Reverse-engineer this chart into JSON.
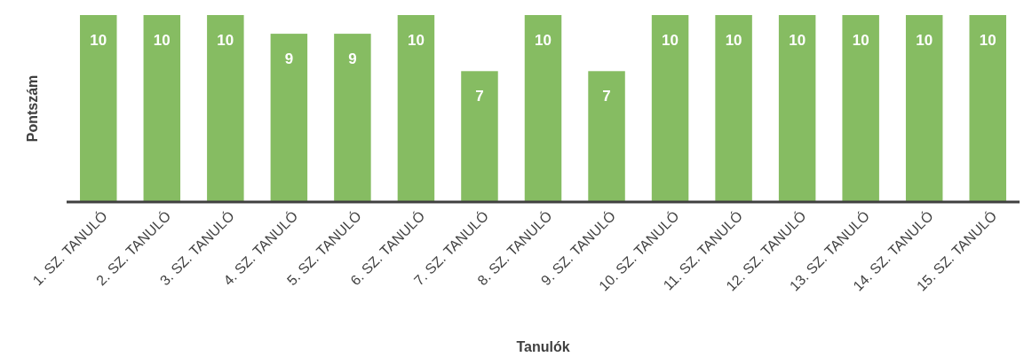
{
  "chart_data": {
    "type": "bar",
    "xlabel": "Tanulók",
    "ylabel": "Pontszám",
    "categories": [
      "1. SZ. TANULÓ",
      "2. SZ. TANULÓ",
      "3. SZ. TANULÓ",
      "4. SZ. TANULÓ",
      "5. SZ. TANULÓ",
      "6. SZ. TANULÓ",
      "7. SZ. TANULÓ",
      "8. SZ. TANULÓ",
      "9. SZ. TANULÓ",
      "10. SZ. TANULÓ",
      "11. SZ. TANULÓ",
      "12. SZ. TANULÓ",
      "13. SZ. TANULÓ",
      "14. SZ. TANULÓ",
      "15. SZ. TANULÓ"
    ],
    "values": [
      10,
      10,
      10,
      9,
      9,
      10,
      7,
      10,
      7,
      10,
      10,
      10,
      10,
      10,
      10
    ],
    "color": "#86bc62",
    "ylim": [
      0,
      10
    ],
    "data_labels": true,
    "tick_labels": "x"
  }
}
